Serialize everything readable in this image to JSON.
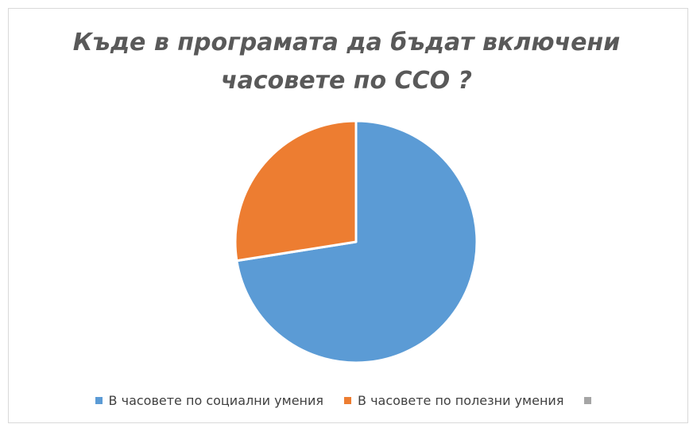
{
  "chart_data": {
    "type": "pie",
    "title_line1": "Къде в програмата да бъдат включени",
    "title_line2": "часовете по ССО ?",
    "slices": [
      {
        "name": "В часовете по социални умения",
        "value": 72.5,
        "color": "#5b9bd5"
      },
      {
        "name": "В часовете по полезни умения",
        "value": 27.5,
        "color": "#ed7d31"
      },
      {
        "name": "",
        "value": 0,
        "color": "#a5a5a5"
      }
    ],
    "legend_position": "bottom",
    "start_angle_deg": 0,
    "direction": "clockwise"
  }
}
